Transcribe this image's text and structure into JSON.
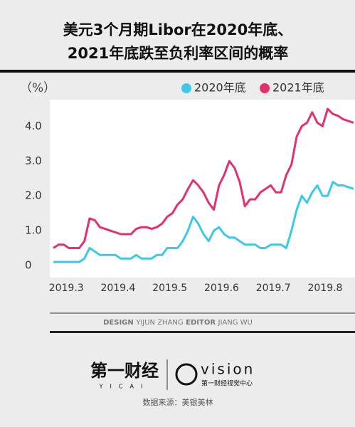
{
  "chart_data": {
    "type": "line",
    "title": [
      "美元3个月期Libor在2020年底、",
      "2021年底跌至负利率区间的概率"
    ],
    "unit_label": "（%）",
    "x": [
      2.75,
      2.85,
      2.95,
      3.05,
      3.15,
      3.25,
      3.35,
      3.45,
      3.55,
      3.65,
      3.75,
      3.85,
      3.95,
      4.05,
      4.15,
      4.25,
      4.35,
      4.45,
      4.55,
      4.65,
      4.75,
      4.85,
      4.95,
      5.05,
      5.15,
      5.25,
      5.35,
      5.45,
      5.55,
      5.65,
      5.75,
      5.85,
      5.95,
      6.05,
      6.15,
      6.25,
      6.35,
      6.45,
      6.55,
      6.65,
      6.75,
      6.85,
      6.95,
      7.05,
      7.15,
      7.25,
      7.35,
      7.45,
      7.55,
      7.65,
      7.75,
      7.85,
      7.95,
      8.05,
      8.15,
      8.25,
      8.35,
      8.45,
      8.55
    ],
    "series": [
      {
        "name": "2020年底",
        "color": "#3cc8ea",
        "values": [
          0.1,
          0.1,
          0.1,
          0.1,
          0.1,
          0.1,
          0.2,
          0.5,
          0.4,
          0.3,
          0.3,
          0.3,
          0.3,
          0.2,
          0.2,
          0.2,
          0.3,
          0.2,
          0.2,
          0.2,
          0.3,
          0.3,
          0.5,
          0.5,
          0.5,
          0.7,
          1.0,
          1.4,
          1.2,
          0.9,
          0.7,
          1.0,
          1.1,
          0.9,
          0.8,
          0.8,
          0.7,
          0.6,
          0.6,
          0.6,
          0.5,
          0.5,
          0.6,
          0.6,
          0.6,
          0.5,
          1.0,
          1.6,
          2.0,
          1.8,
          2.1,
          2.3,
          2.0,
          2.0,
          2.4,
          2.3,
          2.3,
          2.25,
          2.2
        ]
      },
      {
        "name": "2021年底",
        "color": "#e3306e",
        "values": [
          0.5,
          0.6,
          0.6,
          0.5,
          0.5,
          0.5,
          0.7,
          1.35,
          1.3,
          1.1,
          1.05,
          1.0,
          0.95,
          0.9,
          0.9,
          0.9,
          1.05,
          1.1,
          1.1,
          1.05,
          1.1,
          1.2,
          1.4,
          1.5,
          1.75,
          1.9,
          2.2,
          2.45,
          2.3,
          2.1,
          1.8,
          1.6,
          2.3,
          2.6,
          3.0,
          2.8,
          2.4,
          1.7,
          1.9,
          1.9,
          2.1,
          2.2,
          2.3,
          2.1,
          2.1,
          2.6,
          2.9,
          3.7,
          4.0,
          4.1,
          4.4,
          4.1,
          4.0,
          4.5,
          4.35,
          4.3,
          4.2,
          4.15,
          4.1
        ]
      }
    ],
    "xlim": [
      2.75,
      8.55
    ],
    "xticks": [
      {
        "value": 3,
        "label": "2019.3"
      },
      {
        "value": 4,
        "label": "2019.4"
      },
      {
        "value": 5,
        "label": "2019.5"
      },
      {
        "value": 6,
        "label": "2019.6"
      },
      {
        "value": 7,
        "label": "2019.7"
      },
      {
        "value": 8,
        "label": "2019.8"
      }
    ],
    "ylim": [
      0,
      4.6
    ],
    "yticks": [
      0,
      {
        "value": 1,
        "label": "1.0"
      },
      {
        "value": 2,
        "label": "2.0"
      },
      {
        "value": 3,
        "label": "3.0"
      },
      {
        "value": 4,
        "label": "4.0"
      }
    ],
    "grid": false,
    "legend": "top-right"
  },
  "credits": {
    "design_label": "DESIGN",
    "designer": "YIJUN ZHANG",
    "editor_label": "EDITOR",
    "editor": "JIANG WU"
  },
  "footer": {
    "brand": "第一财经",
    "brand_en": "YICAI",
    "vision": "vision",
    "vision_cn": "第一财经视觉中心",
    "source": "数据来源：美银美林"
  }
}
